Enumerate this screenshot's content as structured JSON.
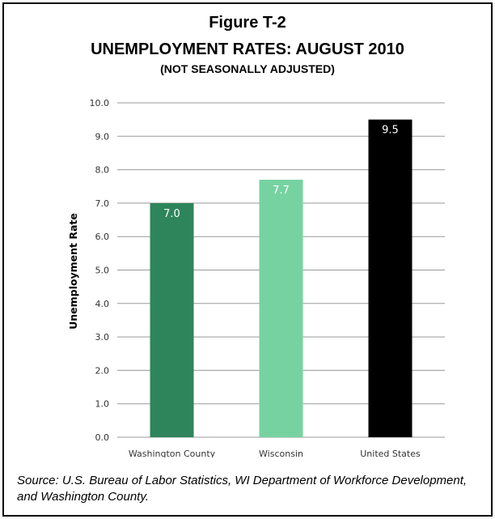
{
  "figure": {
    "label": "Figure T-2",
    "title": "UNEMPLOYMENT RATES: AUGUST 2010",
    "subtitle": "(NOT SEASONALLY ADJUSTED)",
    "source": "Source: U.S. Bureau of Labor Statistics, WI Department of Workforce Development, and Washington County."
  },
  "chart_data": {
    "type": "bar",
    "categories": [
      "Washington County",
      "Wisconsin",
      "United States"
    ],
    "values": [
      7.0,
      7.7,
      9.5
    ],
    "value_labels": [
      "7.0",
      "7.7",
      "9.5"
    ],
    "colors": [
      "#2e855b",
      "#76d3a1",
      "#000000"
    ],
    "ylabel": "Unemployment Rate",
    "ylim": [
      0,
      10
    ],
    "yticks": [
      "0.0",
      "1.0",
      "2.0",
      "3.0",
      "4.0",
      "5.0",
      "6.0",
      "7.0",
      "8.0",
      "9.0",
      "10.0"
    ],
    "grid": true,
    "legend": "none"
  }
}
